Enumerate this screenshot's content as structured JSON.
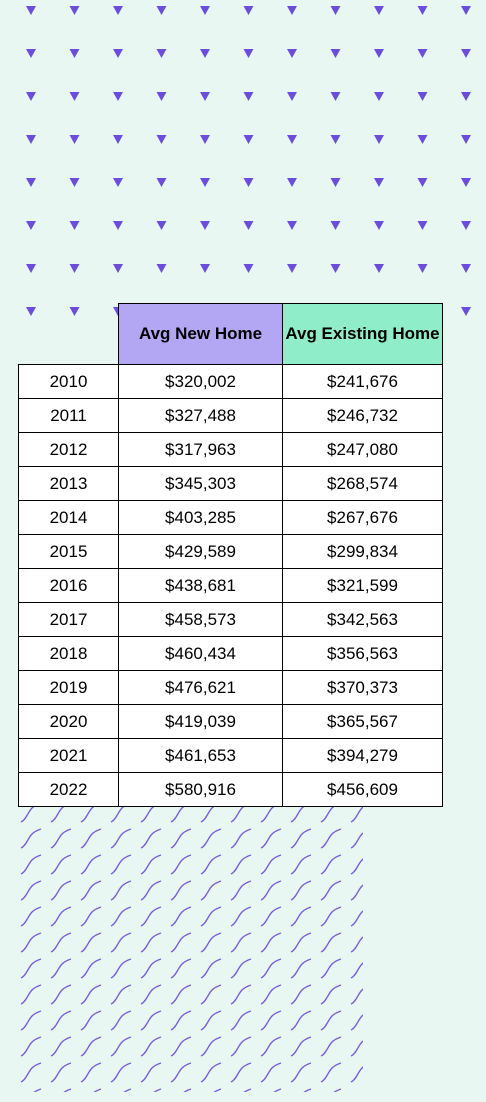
{
  "table": {
    "columns": [
      "Avg New Home",
      "Avg Existing Home"
    ],
    "rows": [
      [
        "2010",
        "$320,002",
        "$241,676"
      ],
      [
        "2011",
        "$327,488",
        "$246,732"
      ],
      [
        "2012",
        "$317,963",
        "$247,080"
      ],
      [
        "2013",
        "$345,303",
        "$268,574"
      ],
      [
        "2014",
        "$403,285",
        "$267,676"
      ],
      [
        "2015",
        "$429,589",
        "$299,834"
      ],
      [
        "2016",
        "$438,681",
        "$321,599"
      ],
      [
        "2017",
        "$458,573",
        "$342,563"
      ],
      [
        "2018",
        "$460,434",
        "$356,563"
      ],
      [
        "2019",
        "$476,621",
        "$370,373"
      ],
      [
        "2020",
        "$419,039",
        "$365,567"
      ],
      [
        "2021",
        "$461,653",
        "$394,279"
      ],
      [
        "2022",
        "$580,916",
        "$456,609"
      ]
    ]
  }
}
